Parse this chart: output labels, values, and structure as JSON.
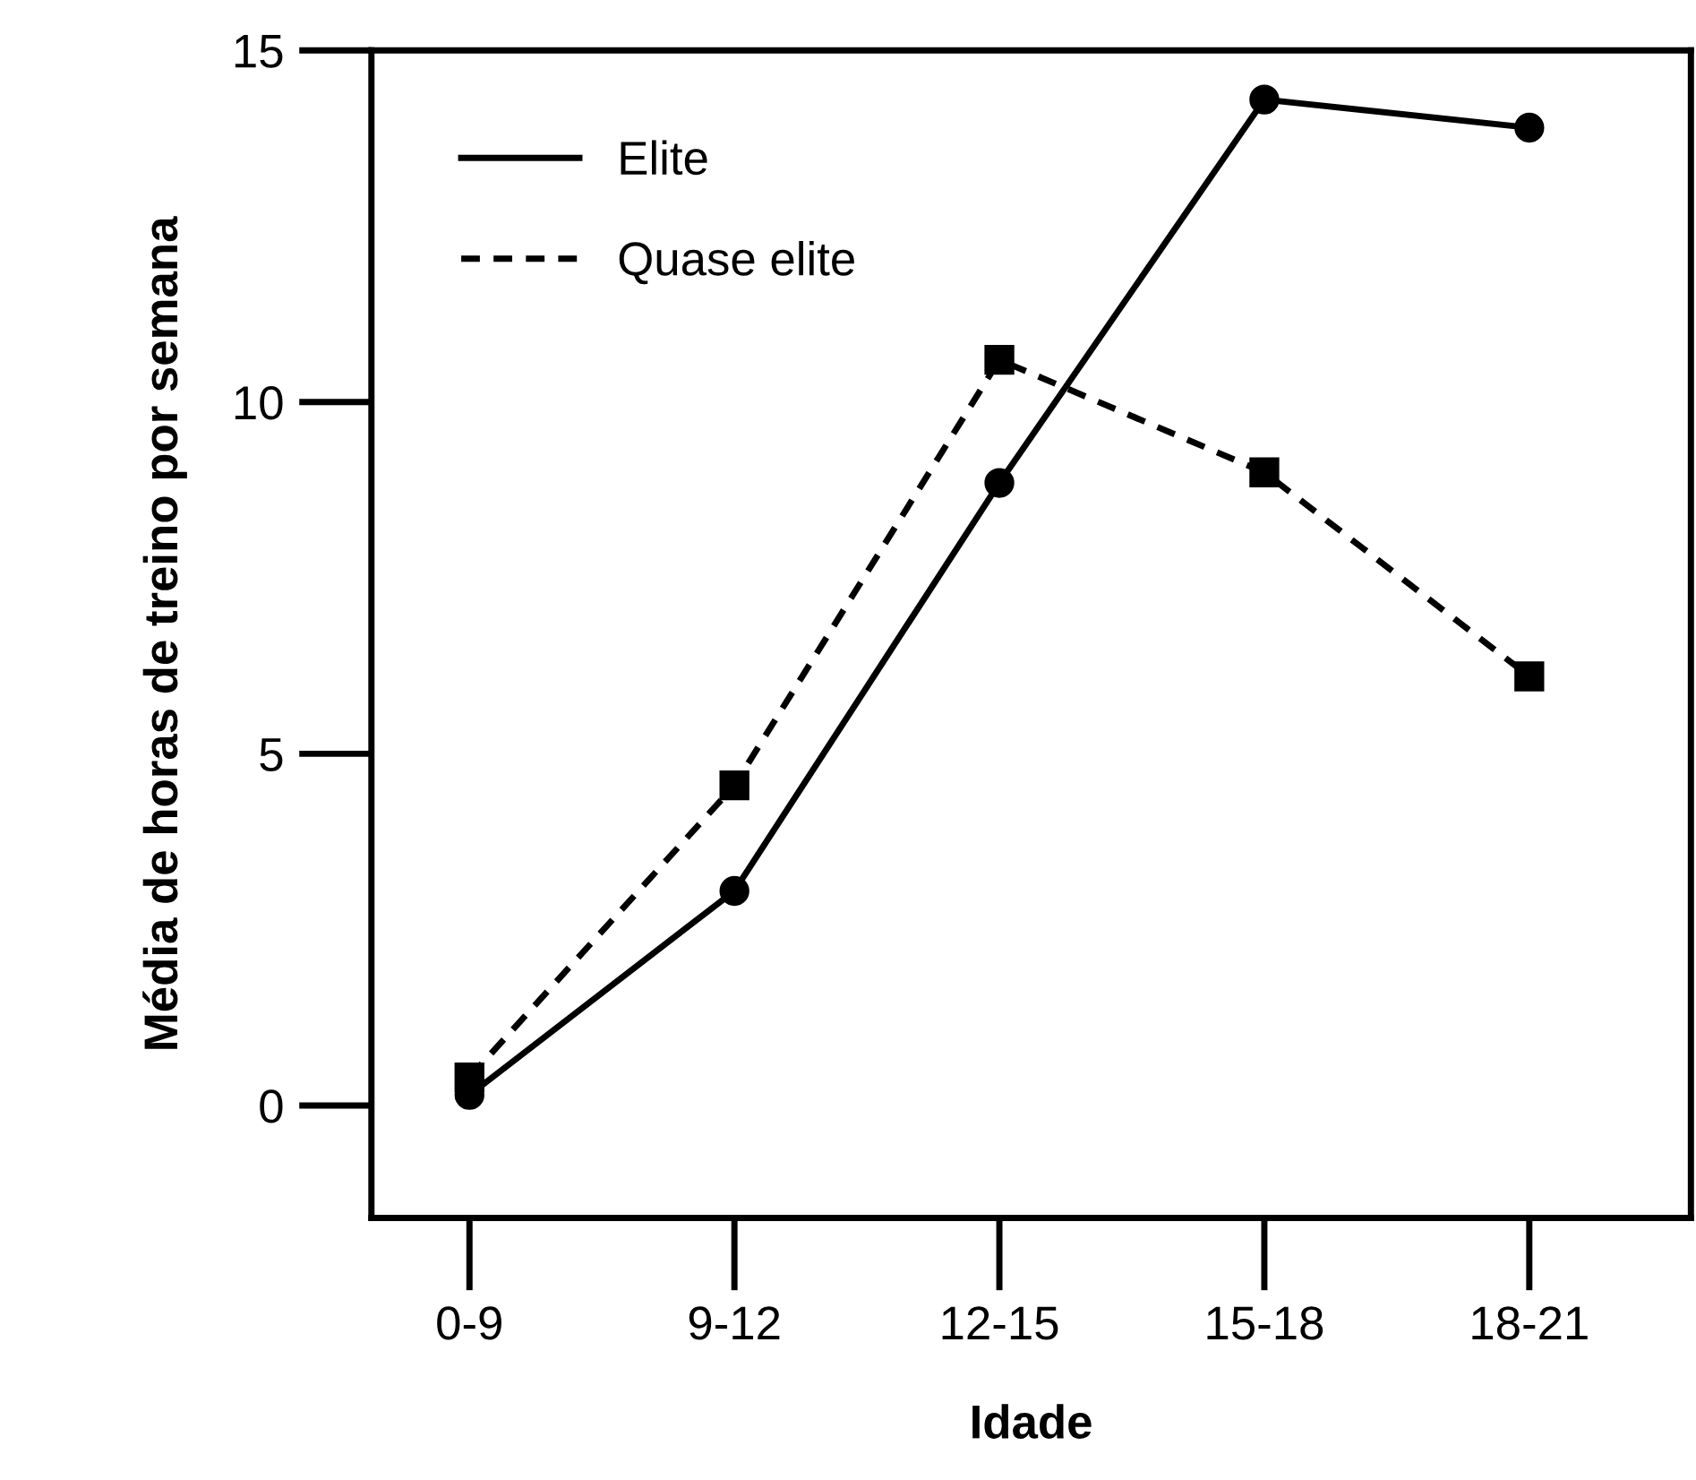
{
  "chart_data": {
    "type": "line",
    "xlabel": "Idade",
    "ylabel": "Média de horas de treino por semana",
    "categories": [
      "0-9",
      "9-12",
      "12-15",
      "15-18",
      "18-21"
    ],
    "series": [
      {
        "name": "Elite",
        "color": "#000000",
        "values": [
          0.15,
          3.05,
          8.85,
          14.3,
          13.9
        ],
        "marker": "circle",
        "line_style": "solid"
      },
      {
        "name": "Quase elite",
        "color": "#000000",
        "values": [
          0.4,
          4.55,
          10.6,
          9.0,
          6.1
        ],
        "marker": "square",
        "line_style": "dashed"
      }
    ],
    "ylim": [
      -1.6,
      15
    ],
    "yticks": [
      0,
      5,
      10,
      15
    ],
    "grid": false,
    "legend": "top left"
  }
}
